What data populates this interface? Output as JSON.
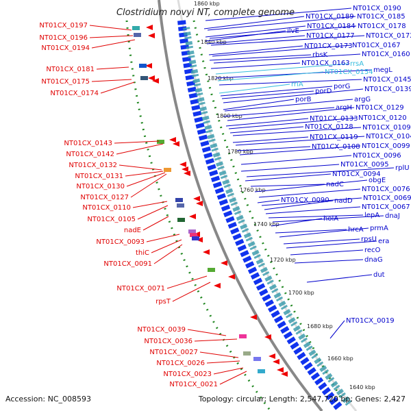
{
  "title": "Clostridium novyi NT, complete genome",
  "footer": {
    "accession": "Accession: NC_008593",
    "summary": "Topology: circular; Length: 2,547,720 bp; Genes: 2,427"
  },
  "colors": {
    "reverse_label": "#e00000",
    "forward_label": "#0000cc",
    "rna_label": "#33bbdd",
    "reverse_arrow": "#ee0000",
    "forward_arrow": "#1133ee",
    "backbone": "#888888",
    "gc_dots": "#228822"
  },
  "kbp_marks": [
    "1860 kbp",
    "1840 kbp",
    "1820 kbp",
    "1800 kbp",
    "1780 kbp",
    "1760 kbp",
    "1740 kbp",
    "1720 kbp",
    "1700 kbp",
    "1680 kbp",
    "1660 kbp",
    "1640 kbp"
  ],
  "left_labels": [
    "NT01CX_0197",
    "NT01CX_0196",
    "NT01CX_0194",
    "NT01CX_0181",
    "NT01CX_0175",
    "NT01CX_0174",
    "NT01CX_0143",
    "NT01CX_0142",
    "NT01CX_0132",
    "NT01CX_0131",
    "NT01CX_0130",
    "NT01CX_0127",
    "NT01CX_0110",
    "NT01CX_0105",
    "nadE",
    "NT01CX_0093",
    "thiC",
    "NT01CX_0091",
    "NT01CX_0071",
    "rpsT",
    "NT01CX_0039",
    "NT01CX_0036",
    "NT01CX_0027",
    "NT01CX_0026",
    "NT01CX_0023",
    "NT01CX_0021"
  ],
  "right_labels": [
    "NT01CX_0190",
    "NT01CX_0189",
    "NT01CX_0185",
    "NT01CX_0184",
    "NT01CX_0178",
    "ilvE",
    "NT01CX_0177",
    "NT01CX_0172",
    "NT01CX_0173",
    "NT01CX_0167",
    "rbsK",
    "NT01CX_0160",
    "NT01CX_0163",
    "rrsA",
    "megL",
    "NT01CX_0154",
    "NT01CX_0145",
    "rrlA",
    "porG",
    "porD",
    "NT01CX_0139",
    "porB",
    "argG",
    "argH",
    "NT01CX_0129",
    "NT01CX_0133",
    "NT01CX_0120",
    "NT01CX_0128",
    "NT01CX_0109",
    "NT01CX_0119",
    "NT01CX_0104",
    "NT01CX_0108",
    "NT01CX_0099",
    "NT01CX_0096",
    "NT01CX_0095",
    "rplU",
    "NT01CX_0094",
    "nadC",
    "obgE",
    "NT01CX_0076",
    "NT01CX_0090",
    "NT01CX_0069",
    "nadD",
    "NT01CX_0067",
    "lepA",
    "dnaJ",
    "holA",
    "hrcA",
    "prmA",
    "rpsU",
    "era",
    "recO",
    "dnaG",
    "dut",
    "NT01CX_0019"
  ]
}
